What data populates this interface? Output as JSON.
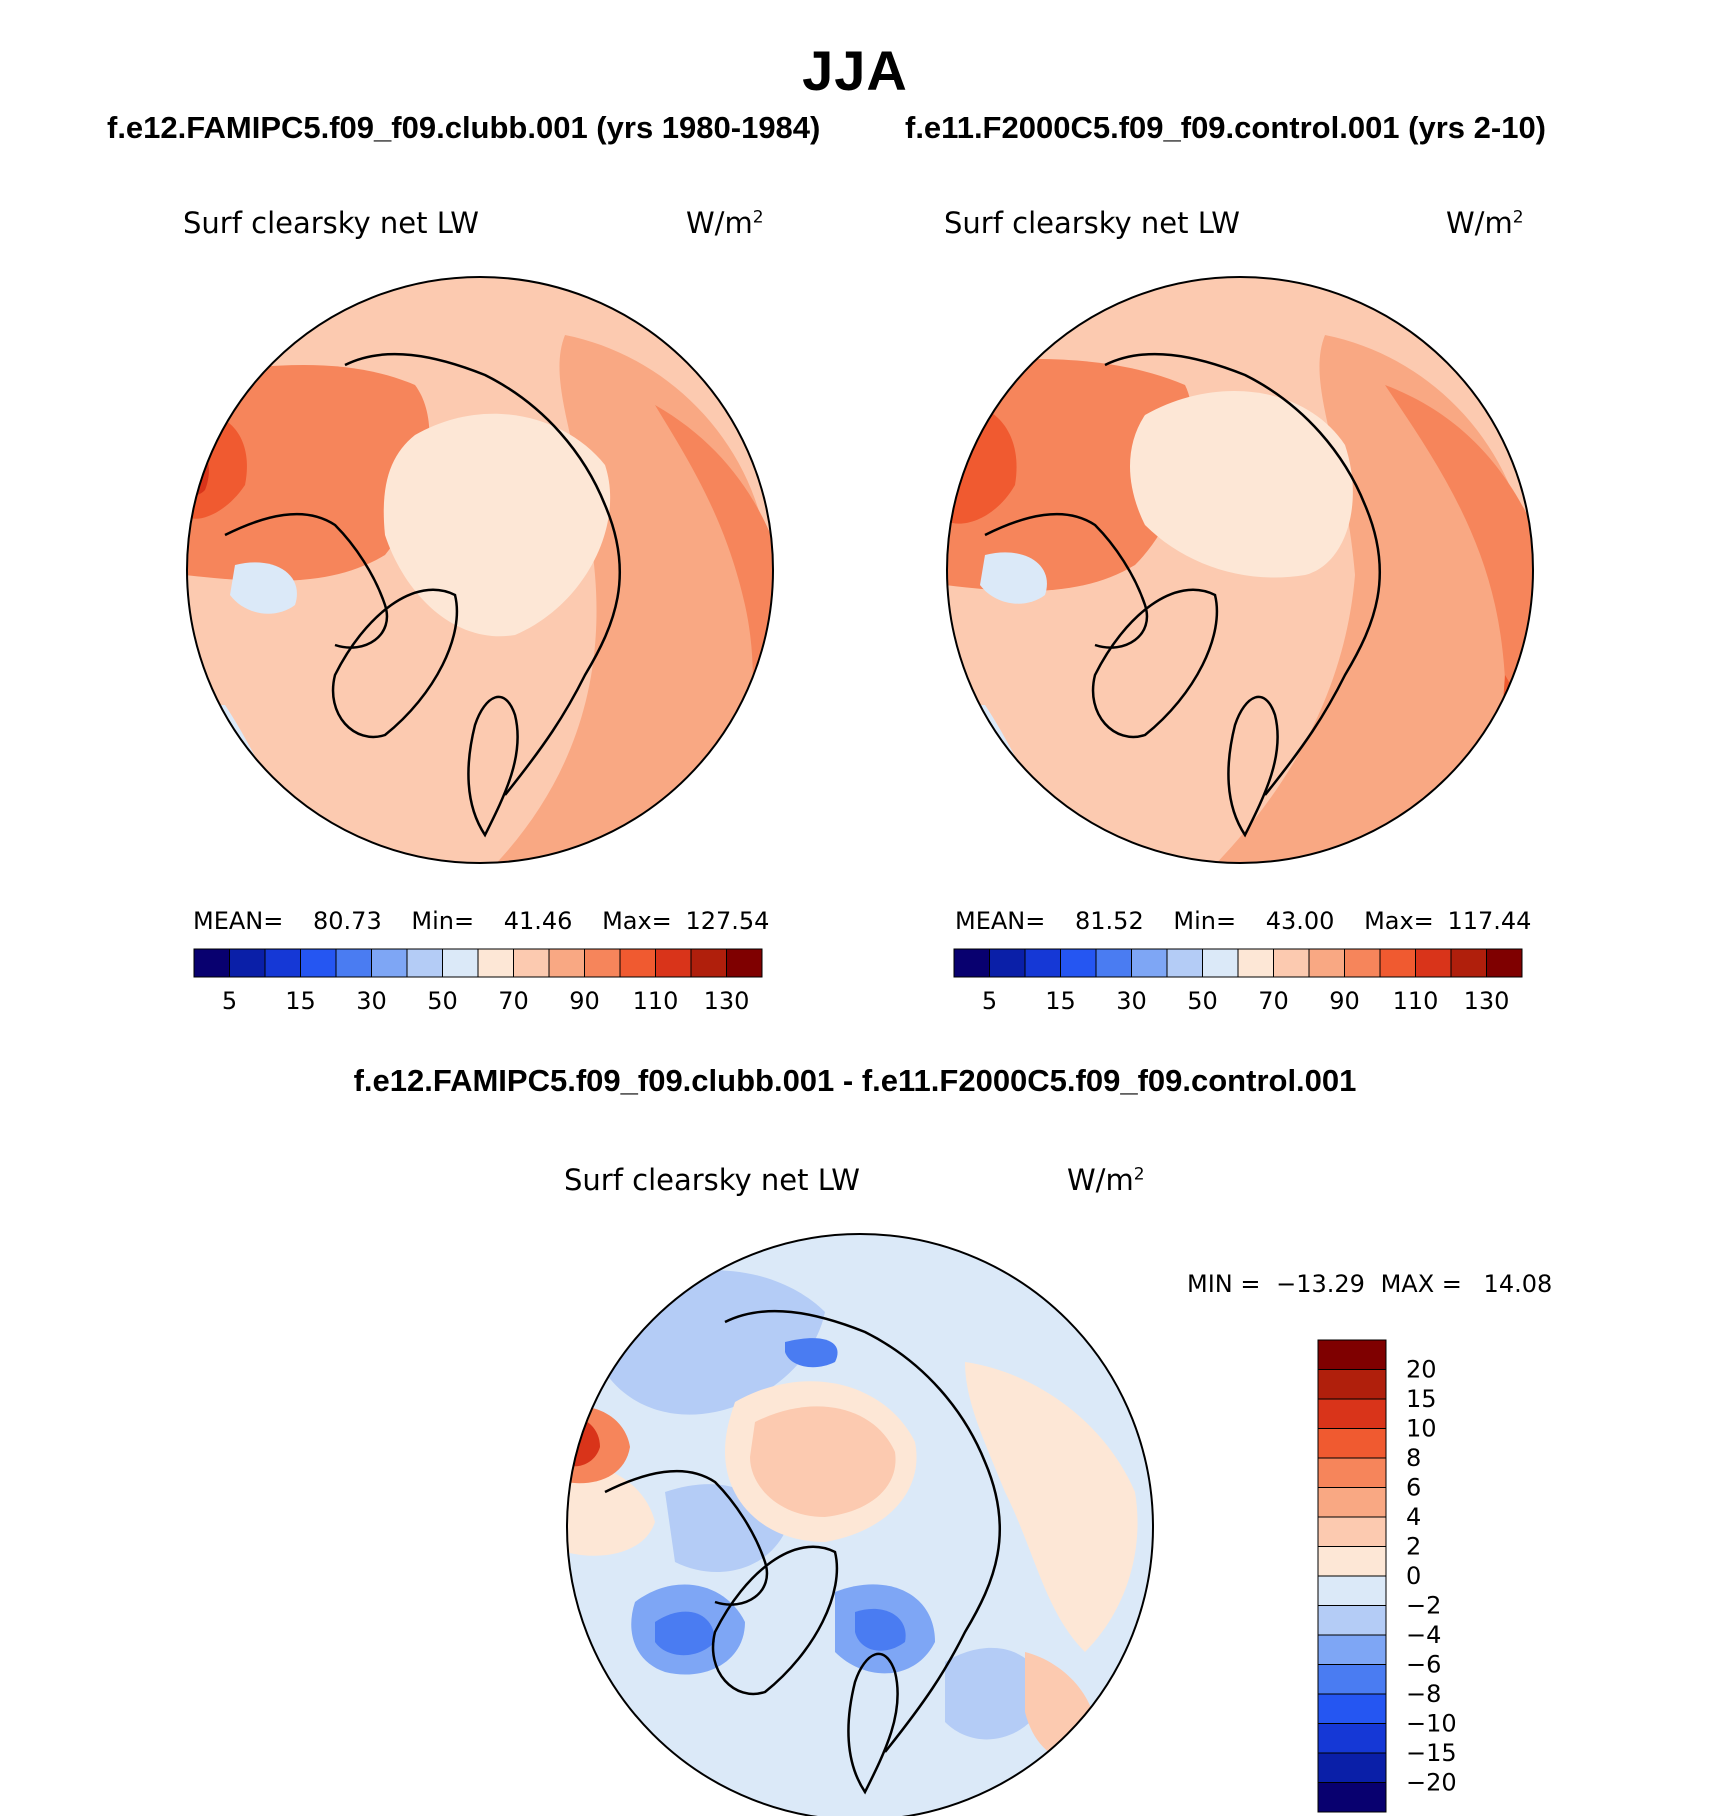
{
  "figure": {
    "title": "JJA",
    "case1_title": "f.e12.FAMIPC5.f09_f09.clubb.001 (yrs 1980-1984)",
    "case2_title": "f.e11.F2000C5.f09_f09.control.001 (yrs 2-10)",
    "diff_title": "f.e12.FAMIPC5.f09_f09.clubb.001 - f.e11.F2000C5.f09_f09.control.001"
  },
  "panels": {
    "p1": {
      "variable": "Surf clearsky net LW",
      "units_base": "W/m",
      "units_exp": "2",
      "mean_label": "MEAN=",
      "mean_value": "80.73",
      "min_label": "Min=",
      "min_value": "41.46",
      "max_label": "Max=",
      "max_value": "127.54"
    },
    "p2": {
      "variable": "Surf clearsky net LW",
      "units_base": "W/m",
      "units_exp": "2",
      "mean_label": "MEAN=",
      "mean_value": "81.52",
      "min_label": "Min=",
      "min_value": "43.00",
      "max_label": "Max=",
      "max_value": "117.44"
    },
    "diff": {
      "variable": "Surf clearsky net LW",
      "units_base": "W/m",
      "units_exp": "2",
      "min_label": "MIN =",
      "min_value": "−13.29",
      "max_label": "MAX =",
      "max_value": "14.08"
    }
  },
  "colorbars": {
    "abs": {
      "colors": [
        "#08006f",
        "#0a1fa8",
        "#1538d6",
        "#2556f2",
        "#4a7cf2",
        "#7ea6f5",
        "#b4ccf6",
        "#dbe9f8",
        "#fde7d6",
        "#fccab0",
        "#f9a883",
        "#f6855b",
        "#f05a30",
        "#d9341a",
        "#b01f0c",
        "#7f0000"
      ],
      "labels": [
        "5",
        "15",
        "30",
        "50",
        "70",
        "90",
        "110",
        "130"
      ]
    },
    "diff": {
      "colors": [
        "#08006f",
        "#0a1fa8",
        "#1538d6",
        "#2556f2",
        "#4a7cf2",
        "#7ea6f5",
        "#b4ccf6",
        "#dbe9f8",
        "#fde7d6",
        "#fccab0",
        "#f9a883",
        "#f6855b",
        "#f05a30",
        "#d9341a",
        "#b01f0c",
        "#7f0000"
      ],
      "labels": [
        "20",
        "15",
        "10",
        "8",
        "6",
        "4",
        "2",
        "0",
        "−2",
        "−4",
        "−6",
        "−8",
        "−10",
        "−15",
        "−20"
      ]
    }
  },
  "map_colors": {
    "p1": {
      "base": "#fccab0",
      "ring": "#f9a883",
      "hot": "#f6855b",
      "hotter": "#f05a30",
      "hottest": "#d9341a",
      "cool": "#fde7d6",
      "cold": "#dbe9f8"
    },
    "p2": {
      "base": "#fccab0",
      "ring": "#f9a883",
      "hot": "#f6855b",
      "hotter": "#f05a30",
      "hottest": "#d9341a",
      "cool": "#fde7d6",
      "cold": "#dbe9f8"
    },
    "diff": {
      "base": "#dbe9f8",
      "light": "#b4ccf6",
      "mid": "#7ea6f5",
      "strong": "#4a7cf2",
      "warm": "#fde7d6",
      "warmer": "#fccab0",
      "hot": "#f6855b",
      "hotter": "#d9341a"
    }
  }
}
